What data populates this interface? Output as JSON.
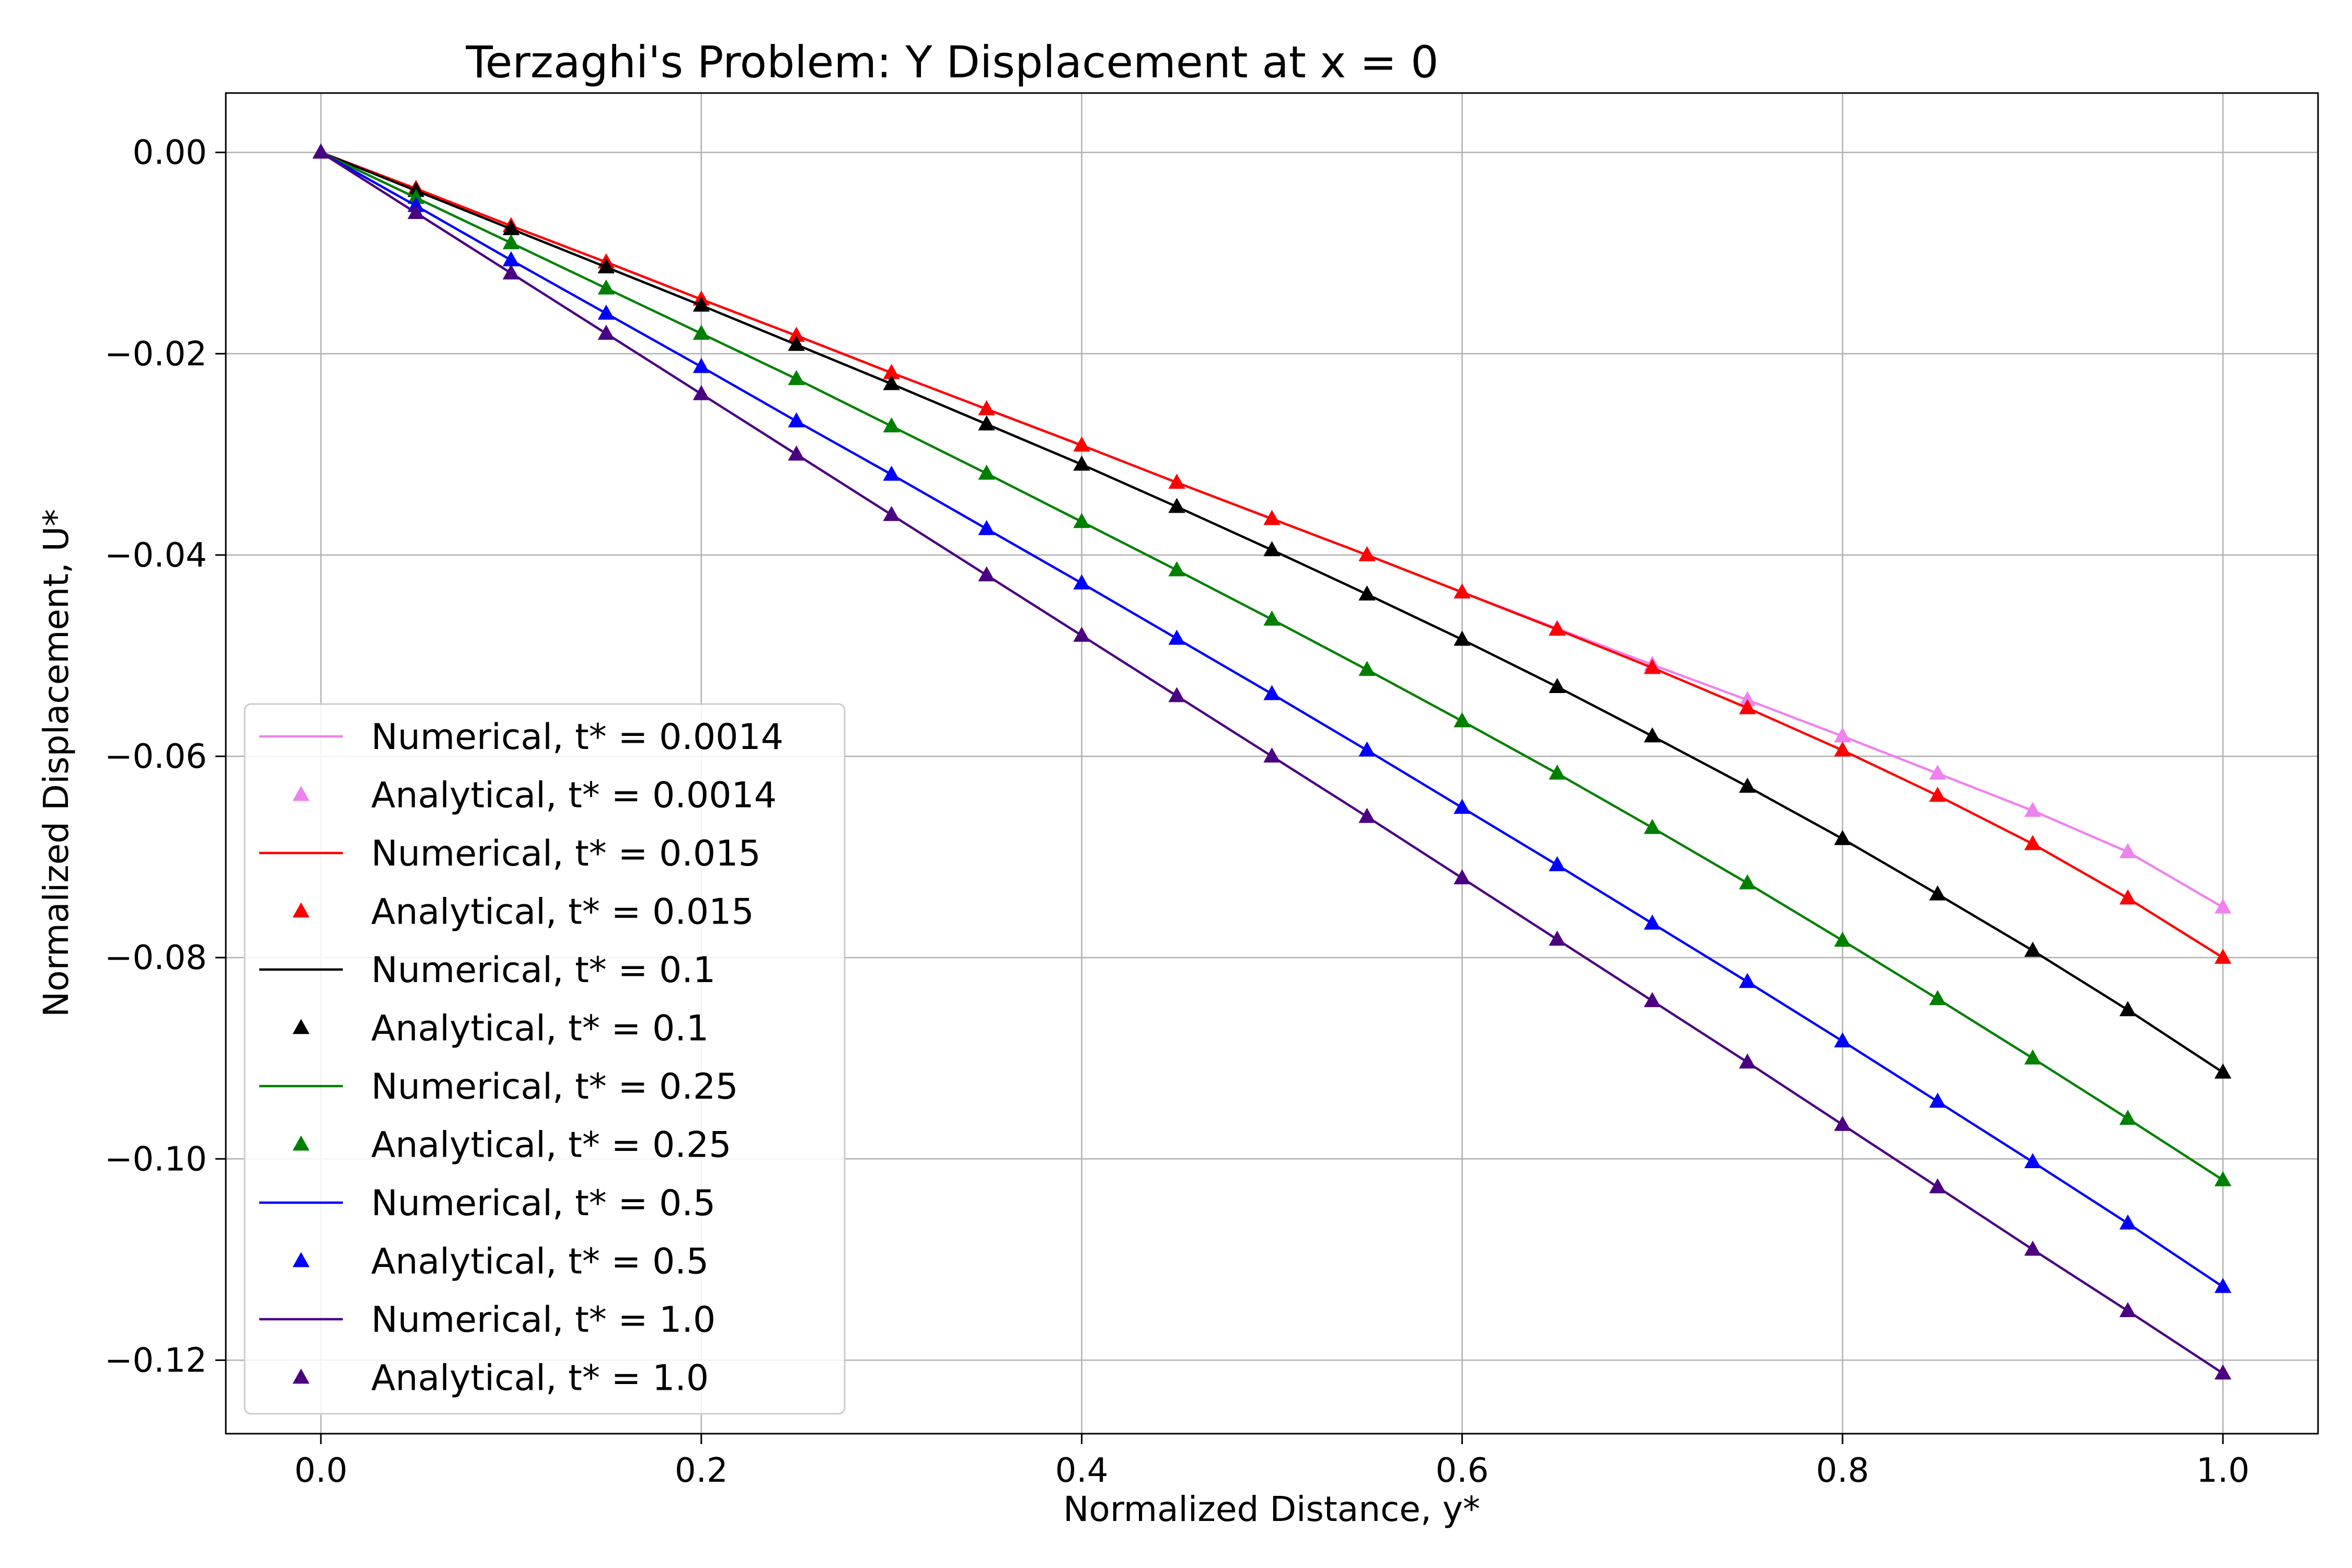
{
  "chart_data": {
    "type": "line",
    "title": "Terzaghi's Problem: Y Displacement at x = 0",
    "xlabel": "Normalized Distance, y*",
    "ylabel": "Normalized Displacement, U*",
    "xlim": [
      -0.05,
      1.05
    ],
    "ylim": [
      -0.1273,
      0.0059
    ],
    "xticks": [
      0.0,
      0.2,
      0.4,
      0.6,
      0.8,
      1.0
    ],
    "xtick_labels": [
      "0.0",
      "0.2",
      "0.4",
      "0.6",
      "0.8",
      "1.0"
    ],
    "yticks": [
      0.0,
      -0.02,
      -0.04,
      -0.06,
      -0.08,
      -0.1,
      -0.12
    ],
    "ytick_labels": [
      "0.00",
      "−0.02",
      "−0.04",
      "−0.06",
      "−0.08",
      "−0.10",
      "−0.12"
    ],
    "grid": true,
    "legend_position": "lower-left",
    "x": [
      0.0,
      0.05,
      0.1,
      0.15,
      0.2,
      0.25,
      0.3,
      0.35,
      0.4,
      0.45,
      0.5,
      0.55,
      0.6,
      0.65,
      0.7,
      0.75,
      0.8,
      0.85,
      0.9,
      0.95,
      1.0
    ],
    "series": [
      {
        "t": "0.0014",
        "color": "#ee82ee",
        "numerical_label": "Numerical, t* = 0.0014",
        "analytical_label": "Analytical, t* = 0.0014",
        "values": [
          0.0,
          -0.0036,
          -0.0073,
          -0.0109,
          -0.0146,
          -0.0182,
          -0.0219,
          -0.0255,
          -0.0291,
          -0.0328,
          -0.0364,
          -0.04,
          -0.0437,
          -0.0473,
          -0.0509,
          -0.0544,
          -0.058,
          -0.0617,
          -0.0654,
          -0.0695,
          -0.075
        ]
      },
      {
        "t": "0.015",
        "color": "#ff0000",
        "numerical_label": "Numerical, t* = 0.015",
        "analytical_label": "Analytical, t* = 0.015",
        "values": [
          0.0,
          -0.0036,
          -0.0073,
          -0.0109,
          -0.0146,
          -0.0182,
          -0.0219,
          -0.0255,
          -0.0291,
          -0.0328,
          -0.0364,
          -0.04,
          -0.0437,
          -0.0474,
          -0.0512,
          -0.0552,
          -0.0594,
          -0.0639,
          -0.0687,
          -0.0741,
          -0.08
        ]
      },
      {
        "t": "0.1",
        "color": "#000000",
        "numerical_label": "Numerical, t* = 0.1",
        "analytical_label": "Analytical, t* = 0.1",
        "values": [
          0.0,
          -0.0038,
          -0.0076,
          -0.0114,
          -0.0152,
          -0.0191,
          -0.023,
          -0.027,
          -0.031,
          -0.0352,
          -0.0395,
          -0.0439,
          -0.0484,
          -0.0531,
          -0.058,
          -0.063,
          -0.0682,
          -0.0737,
          -0.0793,
          -0.0852,
          -0.0914
        ]
      },
      {
        "t": "0.25",
        "color": "#008000",
        "numerical_label": "Numerical, t* = 0.25",
        "analytical_label": "Analytical, t* = 0.25",
        "values": [
          0.0,
          -0.0045,
          -0.009,
          -0.0135,
          -0.018,
          -0.0225,
          -0.0272,
          -0.0319,
          -0.0367,
          -0.0415,
          -0.0464,
          -0.0514,
          -0.0565,
          -0.0617,
          -0.0671,
          -0.0726,
          -0.0783,
          -0.0841,
          -0.09,
          -0.096,
          -0.1021
        ]
      },
      {
        "t": "0.5",
        "color": "#0000ff",
        "numerical_label": "Numerical, t* = 0.5",
        "analytical_label": "Analytical, t* = 0.5",
        "values": [
          0.0,
          -0.0053,
          -0.0107,
          -0.016,
          -0.0213,
          -0.0267,
          -0.032,
          -0.0374,
          -0.0428,
          -0.0483,
          -0.0538,
          -0.0594,
          -0.0651,
          -0.0708,
          -0.0766,
          -0.0824,
          -0.0883,
          -0.0943,
          -0.1003,
          -0.1064,
          -0.1127
        ]
      },
      {
        "t": "1.0",
        "color": "#4b0082",
        "numerical_label": "Numerical, t* = 1.0",
        "analytical_label": "Analytical, t* = 1.0",
        "values": [
          0.0,
          -0.006,
          -0.012,
          -0.018,
          -0.024,
          -0.03,
          -0.036,
          -0.042,
          -0.048,
          -0.054,
          -0.06,
          -0.066,
          -0.0721,
          -0.0782,
          -0.0843,
          -0.0904,
          -0.0966,
          -0.1028,
          -0.109,
          -0.1151,
          -0.1213
        ]
      }
    ]
  }
}
